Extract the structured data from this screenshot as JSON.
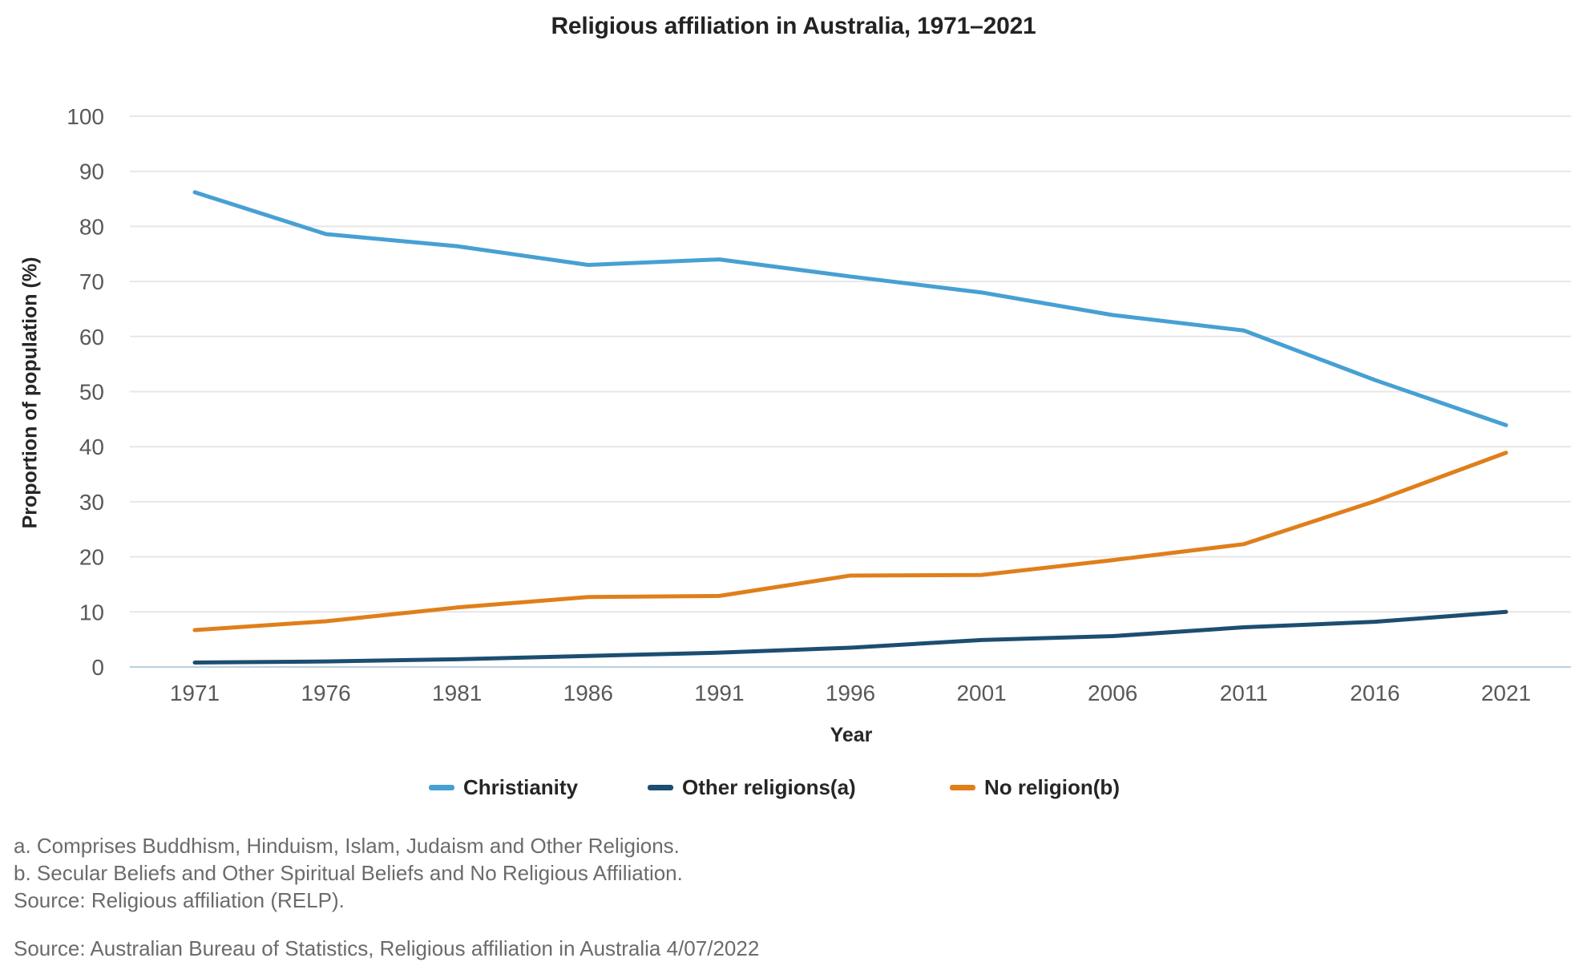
{
  "title": "Religious affiliation in Australia, 1971–2021",
  "chart_data": {
    "type": "line",
    "title": "Religious affiliation in Australia, 1971–2021",
    "xlabel": "Year",
    "ylabel": "Proportion of population (%)",
    "categories": [
      "1971",
      "1976",
      "1981",
      "1986",
      "1991",
      "1996",
      "2001",
      "2006",
      "2011",
      "2016",
      "2021"
    ],
    "yticks": [
      0,
      10,
      20,
      30,
      40,
      50,
      60,
      70,
      80,
      90,
      100
    ],
    "ylim": [
      0,
      100
    ],
    "grid": true,
    "legend_position": "bottom",
    "grid_color": "#e7e7e7",
    "baseline_color": "#b9cfdf",
    "tick_label_color": "#595959",
    "series": [
      {
        "name": "Christianity",
        "color": "#47a0d3",
        "values": [
          86.2,
          78.6,
          76.4,
          73.0,
          74.0,
          70.9,
          68.0,
          63.9,
          61.1,
          52.1,
          43.9
        ]
      },
      {
        "name": "Other religions(a)",
        "color": "#1c4e70",
        "values": [
          0.8,
          1.0,
          1.4,
          2.0,
          2.6,
          3.5,
          4.9,
          5.6,
          7.2,
          8.2,
          10.0
        ]
      },
      {
        "name": "No religion(b)",
        "color": "#df7f1b",
        "values": [
          6.7,
          8.3,
          10.8,
          12.7,
          12.9,
          16.6,
          16.7,
          19.4,
          22.3,
          30.1,
          38.9
        ]
      }
    ]
  },
  "footnotes": [
    "a. Comprises Buddhism, Hinduism, Islam, Judaism and Other Religions.",
    "b. Secular Beliefs and Other Spiritual Beliefs and No Religious Affiliation.",
    "Source: Religious affiliation (RELP)."
  ],
  "source": "Source: Australian Bureau of Statistics, Religious affiliation in Australia 4/07/2022"
}
